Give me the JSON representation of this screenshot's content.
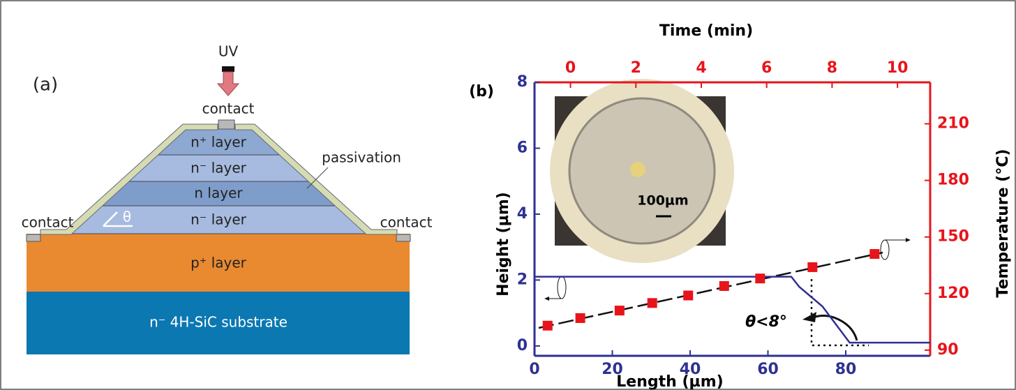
{
  "diagram": {
    "label": "(a)",
    "uv": "UV",
    "top_contact": "contact",
    "layers": [
      "n⁺ layer",
      "n⁻ layer",
      "n layer",
      "n⁻ layer",
      "p⁺ layer",
      "n⁻ 4H-SiC substrate"
    ],
    "passivation": "passivation",
    "left_contact": "contact",
    "right_contact": "contact",
    "angle": "θ"
  },
  "chart_data": {
    "type": "line",
    "panel_label": "(b)",
    "xlabel": "Length (µm)",
    "ylabel": "Height (µm)",
    "x2label": "Time (min)",
    "y2label": "Temperature (°C)",
    "xlim": [
      0,
      101.7
    ],
    "xticks": [
      0,
      20,
      40,
      60,
      80
    ],
    "ylim": [
      -0.3,
      8
    ],
    "yticks": [
      0,
      2,
      4,
      6,
      8
    ],
    "x2lim": [
      -1.1,
      11
    ],
    "x2ticks": [
      0,
      2,
      4,
      6,
      8,
      10
    ],
    "y2lim": [
      87,
      232
    ],
    "y2ticks": [
      90,
      120,
      150,
      180,
      210
    ],
    "series": [
      {
        "color": "#2e3192",
        "x": [
          0,
          66,
          68,
          74,
          81,
          101.7
        ],
        "values": [
          2.1,
          2.1,
          1.8,
          1.2,
          0.1,
          0.1
        ]
      },
      {
        "color": "#e8141b",
        "axis": "y2",
        "xaxis": "x2",
        "marker": "square",
        "x": [
          -0.7,
          0.3,
          1.5,
          2.5,
          3.6,
          4.7,
          5.8,
          7.4,
          9.3
        ],
        "values": [
          103,
          107,
          111,
          115,
          119,
          124,
          128,
          134,
          141
        ]
      }
    ],
    "annotations": [
      "θ<8°",
      "100µm"
    ]
  }
}
